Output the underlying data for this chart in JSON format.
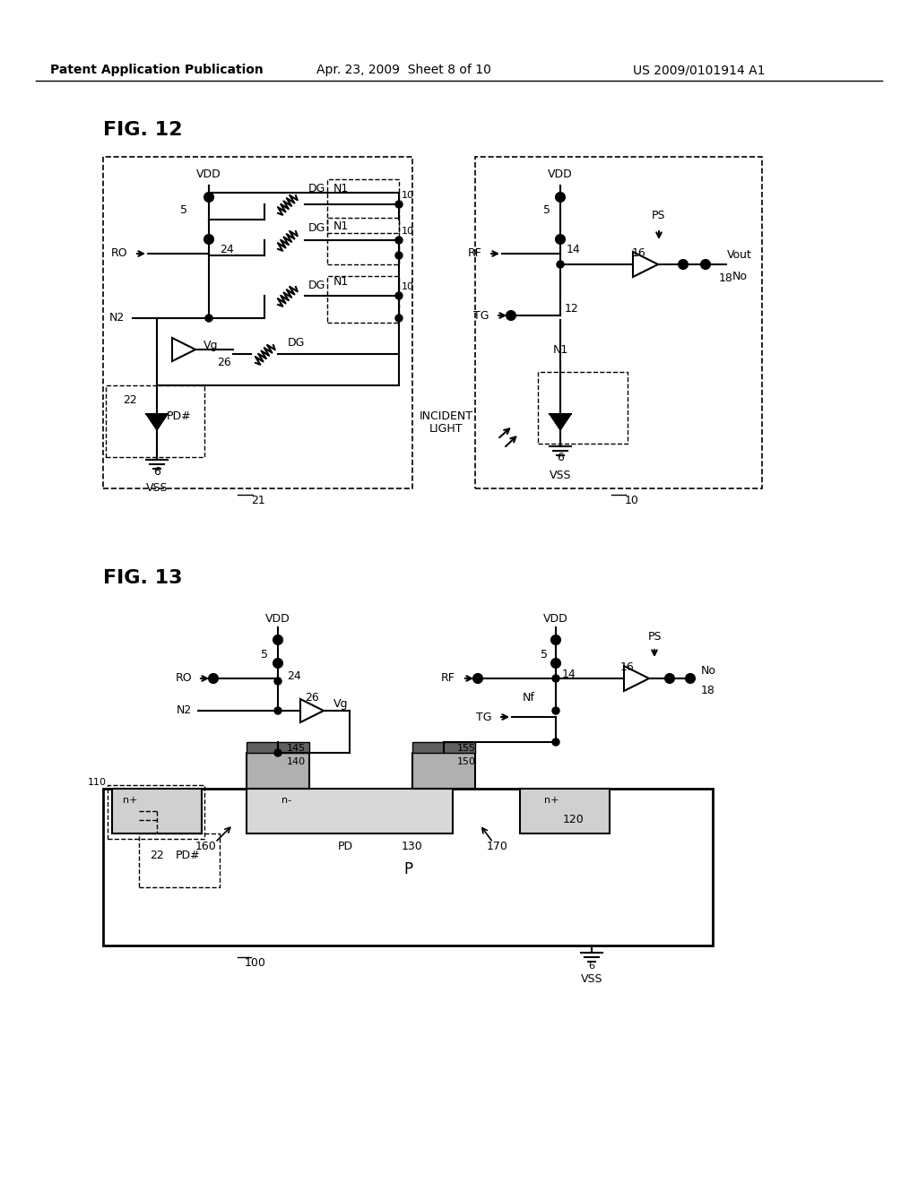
{
  "bg_color": "#ffffff",
  "fig_width": 10.24,
  "fig_height": 13.2,
  "header_text": "Patent Application Publication",
  "header_date": "Apr. 23, 2009  Sheet 8 of 10",
  "header_patent": "US 2009/0101914 A1",
  "fig12_label": "FIG. 12",
  "fig13_label": "FIG. 13"
}
